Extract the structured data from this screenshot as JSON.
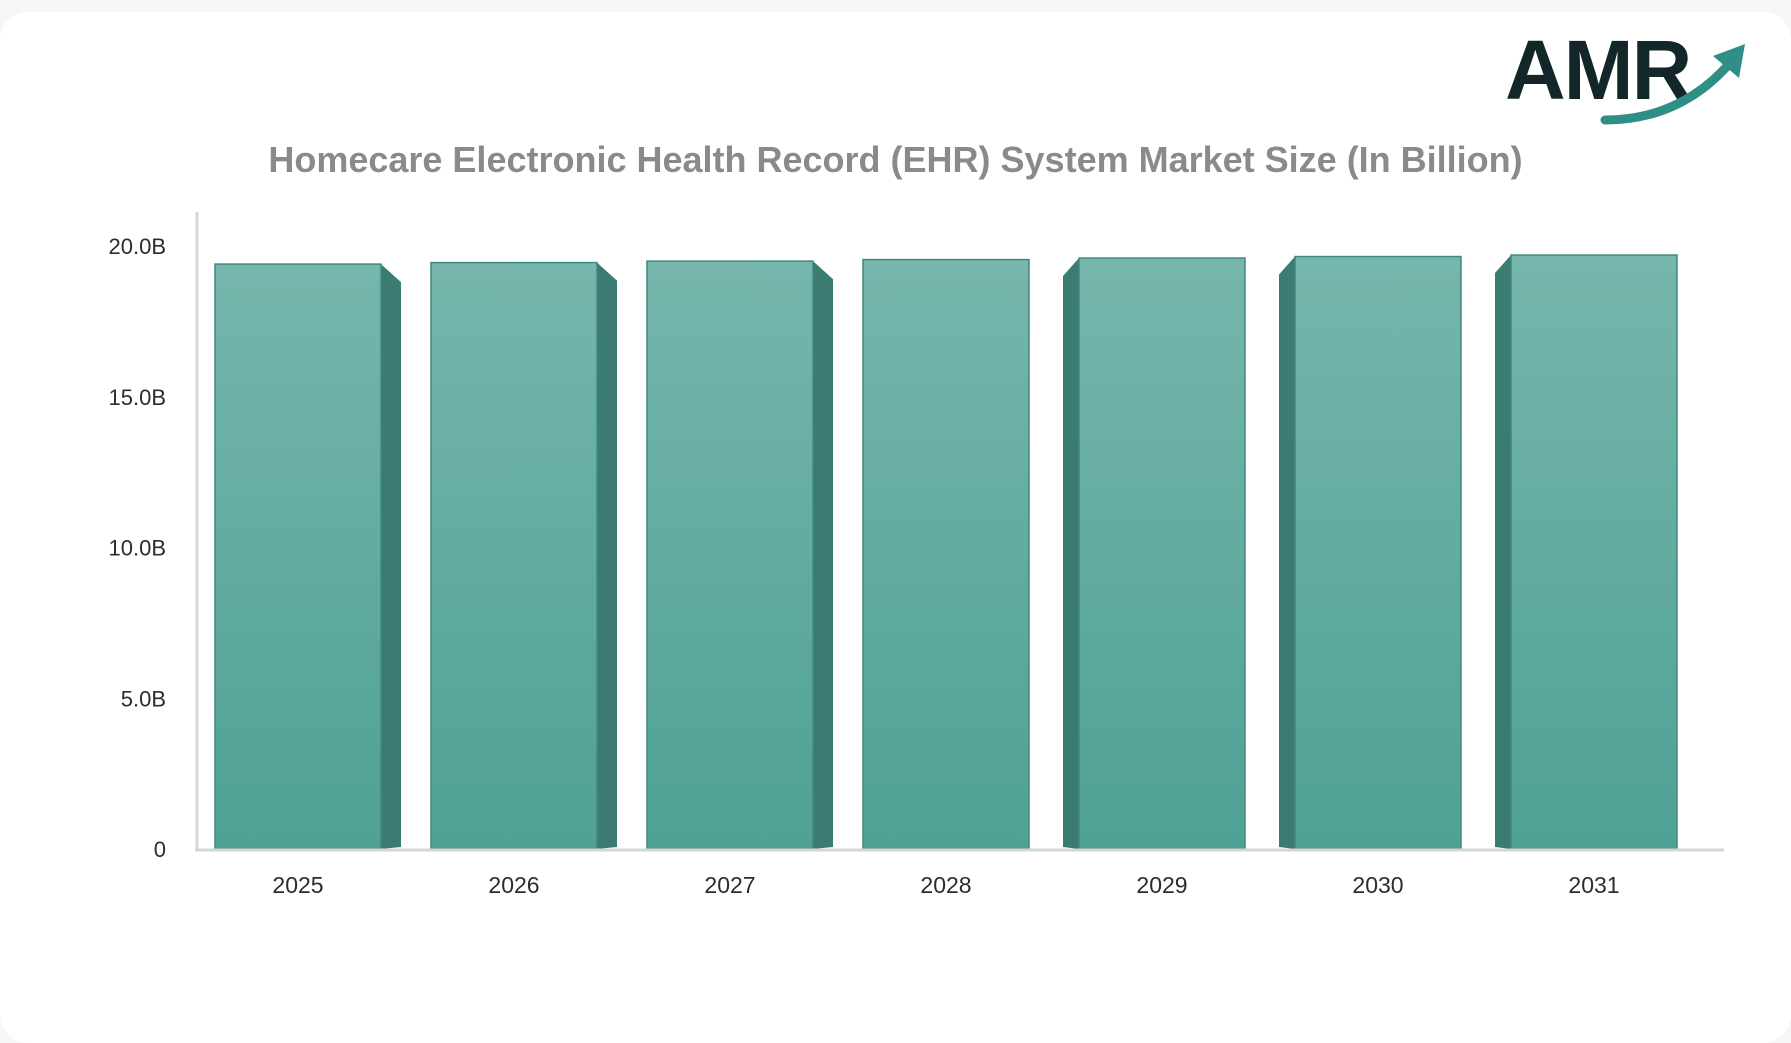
{
  "brand": {
    "logo_text": "AMR",
    "logo_color": "#13272b",
    "arrow_color": "#2f8f86"
  },
  "colors": {
    "bar_front_top": "#76b6ac",
    "bar_front_bottom": "#4fa195",
    "bar_side": "#3c7b71",
    "axis": "#d6d6d6"
  },
  "chart_data": {
    "type": "bar",
    "title": "Homecare Electronic Health Record (EHR) System Market Size (In Billion)",
    "xlabel": "",
    "ylabel": "",
    "categories": [
      "2025",
      "2026",
      "2027",
      "2028",
      "2029",
      "2030",
      "2031"
    ],
    "values": [
      19.4,
      19.45,
      19.5,
      19.55,
      19.6,
      19.65,
      19.7
    ],
    "ylim": [
      0,
      20
    ],
    "yticks": [
      0,
      5,
      10,
      15,
      20
    ],
    "ytick_labels": [
      "0",
      "5.0B",
      "10.0B",
      "15.0B",
      "20.0B"
    ],
    "grid": false,
    "legend": "none"
  }
}
